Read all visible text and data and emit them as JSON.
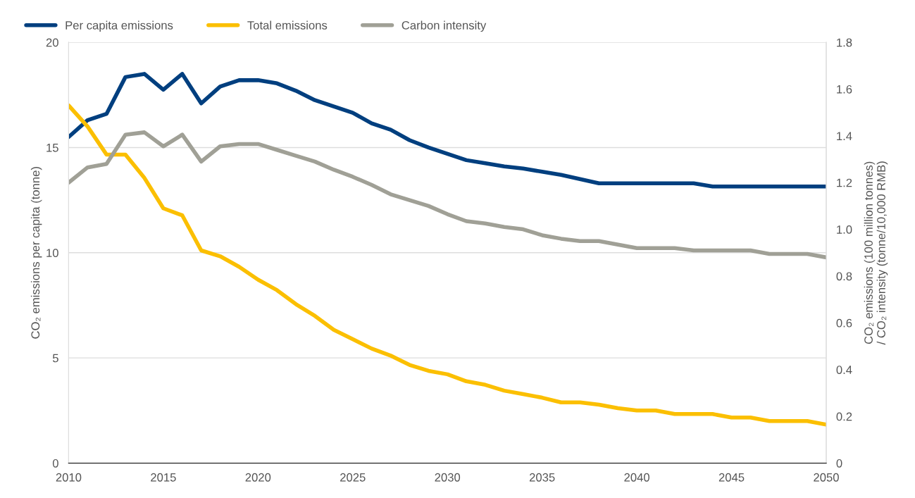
{
  "chart_data": {
    "type": "line",
    "x": [
      2010,
      2011,
      2012,
      2013,
      2014,
      2015,
      2016,
      2017,
      2018,
      2019,
      2020,
      2021,
      2022,
      2023,
      2024,
      2025,
      2026,
      2027,
      2028,
      2029,
      2030,
      2031,
      2032,
      2033,
      2034,
      2035,
      2036,
      2037,
      2038,
      2039,
      2040,
      2041,
      2042,
      2043,
      2044,
      2045,
      2046,
      2047,
      2048,
      2049,
      2050
    ],
    "series": [
      {
        "name": "Per capita emissions",
        "color": "#003f7f",
        "values": [
          15.5,
          16.3,
          16.6,
          18.35,
          18.5,
          17.75,
          18.5,
          17.1,
          17.9,
          18.2,
          18.2,
          18.05,
          17.7,
          17.25,
          16.95,
          16.65,
          16.15,
          15.85,
          15.35,
          15.0,
          14.7,
          14.4,
          14.25,
          14.1,
          14.0,
          13.85,
          13.7,
          13.5,
          13.3,
          13.3,
          13.3,
          13.3,
          13.3,
          13.3,
          13.15,
          13.15,
          13.15,
          13.15,
          13.15,
          13.15,
          13.15
        ]
      },
      {
        "name": "Total emissions",
        "color": "#fbbf00",
        "axis": "y2",
        "values": [
          1.53,
          1.44,
          1.32,
          1.32,
          1.22,
          1.09,
          1.06,
          0.91,
          0.885,
          0.84,
          0.785,
          0.74,
          0.68,
          0.63,
          0.57,
          0.53,
          0.49,
          0.46,
          0.42,
          0.395,
          0.38,
          0.35,
          0.335,
          0.31,
          0.295,
          0.28,
          0.26,
          0.26,
          0.25,
          0.235,
          0.225,
          0.225,
          0.21,
          0.21,
          0.21,
          0.195,
          0.195,
          0.18,
          0.18,
          0.18,
          0.165
        ]
      },
      {
        "name": "Carbon intensity",
        "color": "#a0a096",
        "axis": "y2",
        "values": [
          1.2,
          1.265,
          1.28,
          1.405,
          1.415,
          1.355,
          1.405,
          1.29,
          1.355,
          1.365,
          1.365,
          1.34,
          1.315,
          1.29,
          1.255,
          1.225,
          1.19,
          1.15,
          1.125,
          1.1,
          1.065,
          1.035,
          1.025,
          1.01,
          1.0,
          0.975,
          0.96,
          0.95,
          0.95,
          0.935,
          0.92,
          0.92,
          0.92,
          0.91,
          0.91,
          0.91,
          0.91,
          0.895,
          0.895,
          0.895,
          0.88
        ]
      }
    ],
    "ylabel": "CO₂ emissions per capita (tonne)",
    "y2label": "CO₂ emissions (100 million tonnes)\n/ CO₂ intensity (tonne/10,000 RMB)",
    "xlim": [
      2010,
      2050
    ],
    "xticks": [
      2010,
      2015,
      2020,
      2025,
      2030,
      2035,
      2040,
      2045,
      2050
    ],
    "ylim": [
      0,
      20
    ],
    "yticks": [
      0,
      5,
      10,
      15,
      20
    ],
    "y2lim": [
      0,
      1.8
    ],
    "y2ticks": [
      0,
      {
        "value": 0.2,
        "label": "0.2"
      },
      {
        "value": 0.4,
        "label": "0.4"
      },
      {
        "value": 0.6,
        "label": "0.6"
      },
      {
        "value": 0.8,
        "label": "0.8"
      },
      {
        "value": 1.0,
        "label": "1.0"
      },
      {
        "value": 1.2,
        "label": "1.2"
      },
      {
        "value": 1.4,
        "label": "1.4"
      },
      {
        "value": 1.6,
        "label": "1.6"
      },
      {
        "value": 1.8,
        "label": "1.8"
      }
    ],
    "grid": "y",
    "legend": "top left",
    "line_style": "solid",
    "marker": "none"
  }
}
